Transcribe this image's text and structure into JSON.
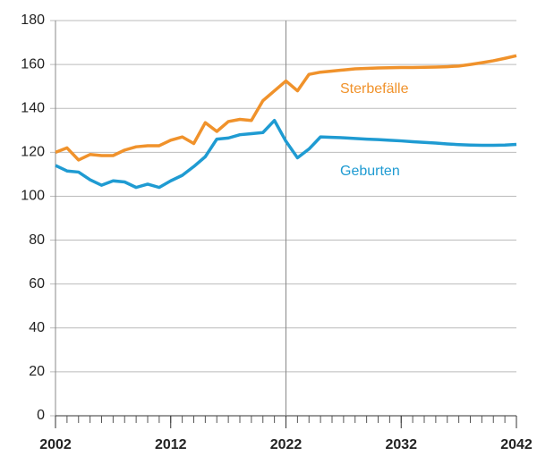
{
  "chart_data": {
    "type": "line",
    "x": [
      2002,
      2003,
      2004,
      2005,
      2006,
      2007,
      2008,
      2009,
      2010,
      2011,
      2012,
      2013,
      2014,
      2015,
      2016,
      2017,
      2018,
      2019,
      2020,
      2021,
      2022,
      2023,
      2024,
      2025,
      2026,
      2027,
      2028,
      2029,
      2030,
      2031,
      2032,
      2033,
      2034,
      2035,
      2036,
      2037,
      2038,
      2039,
      2040,
      2041,
      2042
    ],
    "series": [
      {
        "name": "Sterbefälle",
        "color": "#f0922b",
        "values": [
          120,
          122,
          116.5,
          119,
          118.5,
          118.5,
          121,
          122.5,
          123,
          123,
          125.5,
          127,
          124,
          133.5,
          129.5,
          134,
          135,
          134.5,
          143.5,
          148,
          152.5,
          148,
          155.5,
          156.5,
          157,
          157.5,
          158,
          158.2,
          158.4,
          158.5,
          158.6,
          158.6,
          158.7,
          158.8,
          159,
          159.3,
          160,
          160.8,
          161.7,
          162.8,
          164
        ]
      },
      {
        "name": "Geburten",
        "color": "#1f9bd2",
        "values": [
          114,
          111.5,
          111,
          107.5,
          105,
          107,
          106.5,
          104,
          105.5,
          104,
          107,
          109.5,
          113.5,
          118,
          126,
          126.5,
          128,
          128.5,
          129,
          134.5,
          125,
          117.5,
          121.5,
          127,
          126.8,
          126.6,
          126.3,
          126,
          125.8,
          125.5,
          125.2,
          124.8,
          124.5,
          124.2,
          123.8,
          123.5,
          123.3,
          123.2,
          123.2,
          123.3,
          123.6
        ]
      }
    ],
    "xlim": [
      2002,
      2042
    ],
    "xticks": [
      2002,
      2012,
      2022,
      2032,
      2042
    ],
    "ylim": [
      0,
      180
    ],
    "yticks": [
      0,
      20,
      40,
      60,
      80,
      100,
      120,
      140,
      160,
      180
    ],
    "grid": true,
    "vline": 2022
  }
}
